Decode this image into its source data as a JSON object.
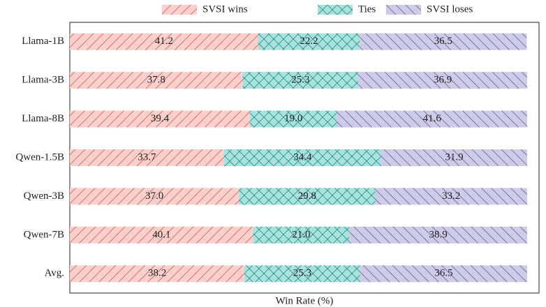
{
  "chart_data": {
    "type": "stacked_barh",
    "xlabel": "Win Rate (%)",
    "categories": [
      "Llama-1B",
      "Llama-3B",
      "Llama-8B",
      "Qwen-1.5B",
      "Qwen-3B",
      "Qwen-7B",
      "Avg."
    ],
    "xlim": [
      0,
      102.6
    ],
    "legend": "top",
    "series": [
      {
        "name": "SVSI wins",
        "color": "#f9d0cc",
        "edgecolor": "#d06060",
        "hatch": "/",
        "values": [
          41.2,
          37.8,
          39.4,
          33.7,
          37.0,
          40.1,
          38.2
        ],
        "value_labels": [
          "41.2",
          "37.8",
          "39.4",
          "33.7",
          "37.0",
          "40.1",
          "38.2"
        ]
      },
      {
        "name": "Ties",
        "color": "#a9e1dc",
        "edgecolor": "#2a8f8f",
        "hatch": "x",
        "values": [
          22.2,
          25.3,
          19.0,
          34.4,
          29.8,
          21.0,
          25.3
        ],
        "value_labels": [
          "22.2",
          "25.3",
          "19.0",
          "34.4",
          "29.8",
          "21.0",
          "25.3"
        ]
      },
      {
        "name": "SVSI loses",
        "color": "#cdcbe7",
        "edgecolor": "#6a6a9a",
        "hatch": "\\",
        "values": [
          36.5,
          36.9,
          41.6,
          31.9,
          33.2,
          38.9,
          36.5
        ],
        "value_labels": [
          "36.5",
          "36.9",
          "41.6",
          "31.9",
          "33.2",
          "38.9",
          "36.5"
        ]
      }
    ]
  }
}
